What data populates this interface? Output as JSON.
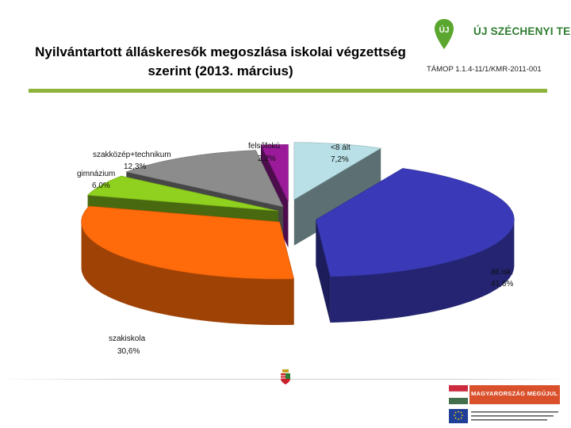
{
  "title": {
    "line1": "Nyilvántartott álláskeresők megoszlása iskolai végzettség",
    "line2": "szerint (2013. március)"
  },
  "header": {
    "logo_text": "ÚJ SZÉCHENYI TERV",
    "logo_color": "#5aa62e",
    "program_code": "TÁMOP 1.1.4-11/1/KMR-2011-001"
  },
  "footer": {
    "banner_text": "MAGYARORSZÁG MEGÚJUL",
    "banner_color": "#d9502b",
    "flag_icon": "hungarian-flag-icon",
    "eu_icon": "eu-flag-icon",
    "coat_of_arms_icon": "coat-of-arms-icon"
  },
  "chart_data": {
    "type": "pie",
    "style": "3d-exploded",
    "title": "Nyilvántartott álláskeresők megoszlása iskolai végzettség szerint (2013. március)",
    "unit": "%",
    "slices": [
      {
        "label": "<8 ált",
        "value": 7.2,
        "value_label": "7,2%",
        "color": "#b8e0e6"
      },
      {
        "label": "ált.isk.",
        "value": 41.6,
        "value_label": "41,6%",
        "color": "#3a3ab8"
      },
      {
        "label": "szakiskola",
        "value": 30.6,
        "value_label": "30,6%",
        "color": "#ff6a0a"
      },
      {
        "label": "gimnázium",
        "value": 6.0,
        "value_label": "6,0%",
        "color": "#8fd11e"
      },
      {
        "label": "szakközép+technikum",
        "value": 12.3,
        "value_label": "12,3%",
        "color": "#8c8c8c"
      },
      {
        "label": "felsőfokú",
        "value": 2.2,
        "value_label": "2,2%",
        "color": "#9a1a9a"
      }
    ]
  }
}
